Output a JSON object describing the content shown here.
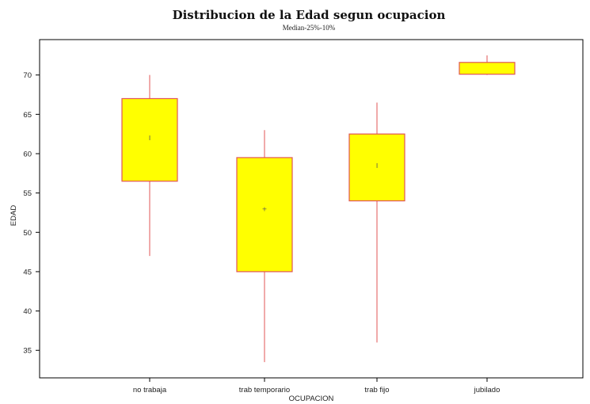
{
  "chart_data": {
    "type": "box",
    "title": "Distribucion de la Edad segun ocupacion",
    "subtitle": "Median-25%-10%",
    "xlabel": "OCUPACION",
    "ylabel": "EDAD",
    "ylim": [
      31.5,
      74.5
    ],
    "yticks": [
      35,
      40,
      45,
      50,
      55,
      60,
      65,
      70
    ],
    "ytick_labels": [
      "35",
      "40",
      "45",
      "50",
      "55",
      "60",
      "65",
      "70"
    ],
    "categories": [
      "no trabaja",
      "trab temporario",
      "trab fijo",
      "jubilado"
    ],
    "boxes": [
      {
        "category": "no trabaja",
        "whisker_low": 47,
        "q1": 56.5,
        "median": 62,
        "q3": 67,
        "whisker_high": 70,
        "median_marker": "I"
      },
      {
        "category": "trab temporario",
        "whisker_low": 33.5,
        "q1": 45,
        "median": 53,
        "q3": 59.5,
        "whisker_high": 63,
        "median_marker": "+"
      },
      {
        "category": "trab fijo",
        "whisker_low": 36,
        "q1": 54,
        "median": 58.5,
        "q3": 62.5,
        "whisker_high": 66.5,
        "median_marker": "I"
      },
      {
        "category": "jubilado",
        "whisker_low": 70,
        "q1": 70.1,
        "median": 70.1,
        "q3": 71.6,
        "whisker_high": 72.5,
        "median_marker": ""
      }
    ],
    "grid": false,
    "colors": {
      "box_fill": "#ffff00",
      "box_stroke": "#e05555",
      "whisker": "#e05555",
      "axis": "#000000"
    }
  }
}
